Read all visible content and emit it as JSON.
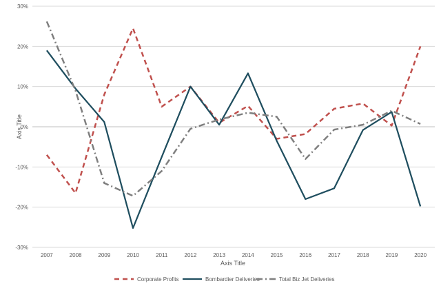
{
  "chart_data": {
    "type": "line",
    "title": "",
    "xlabel": "Axis Title",
    "ylabel": "Axis Title",
    "categories": [
      "2007",
      "2008",
      "2009",
      "2010",
      "2011",
      "2012",
      "2013",
      "2014",
      "2015",
      "2016",
      "2017",
      "2018",
      "2019",
      "2020"
    ],
    "ylim": [
      -0.3,
      0.3
    ],
    "yticks": [
      0.3,
      0.2,
      0.1,
      0,
      -0.1,
      -0.2,
      -0.3
    ],
    "ytick_labels": [
      "30%",
      "20%",
      "10%",
      "0%",
      "-10%",
      "-20%",
      "-30%"
    ],
    "grid": "horizontal",
    "legend_position": "bottom",
    "series": [
      {
        "name": "Corporate Profits",
        "color": "#c0504d",
        "style": "dashed",
        "values": [
          -0.07,
          -0.165,
          0.08,
          0.245,
          0.05,
          0.1,
          0.01,
          0.052,
          -0.03,
          -0.018,
          0.045,
          0.058,
          0.003,
          0.2
        ]
      },
      {
        "name": "Bombardier Deliveries",
        "color": "#1f4e5f",
        "style": "solid",
        "values": [
          0.19,
          0.095,
          0.012,
          -0.252,
          -0.075,
          0.1,
          0.005,
          0.133,
          -0.035,
          -0.18,
          -0.153,
          -0.008,
          0.037,
          -0.198
        ]
      },
      {
        "name": "Total Biz Jet Deliveries",
        "color": "#7f7f7f",
        "style": "dashdot",
        "values": [
          0.262,
          0.09,
          -0.14,
          -0.172,
          -0.11,
          -0.005,
          0.018,
          0.035,
          0.025,
          -0.08,
          -0.007,
          0.005,
          0.04,
          0.007
        ]
      }
    ]
  }
}
